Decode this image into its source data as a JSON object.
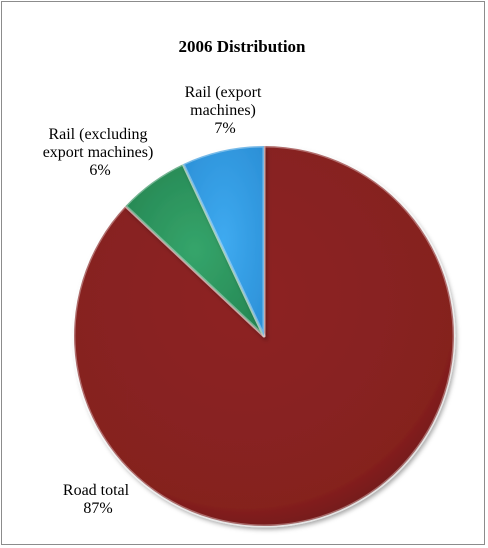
{
  "chart_data": {
    "type": "pie",
    "title": "2006 Distribution",
    "slices": [
      {
        "label": "Road total",
        "value": 87,
        "pct_label": "87%",
        "color": "#8b2220"
      },
      {
        "label": "Rail (excluding export machines)",
        "label_lines": [
          "Rail (excluding",
          "export machines)"
        ],
        "value": 6,
        "pct_label": "6%",
        "color": "#2e9b62"
      },
      {
        "label": "Rail (export machines)",
        "label_lines": [
          "Rail (export",
          "machines)"
        ],
        "value": 7,
        "pct_label": "7%",
        "color": "#35a3e8"
      }
    ],
    "start": "12 o'clock",
    "direction": "clockwise",
    "legend": "none"
  }
}
